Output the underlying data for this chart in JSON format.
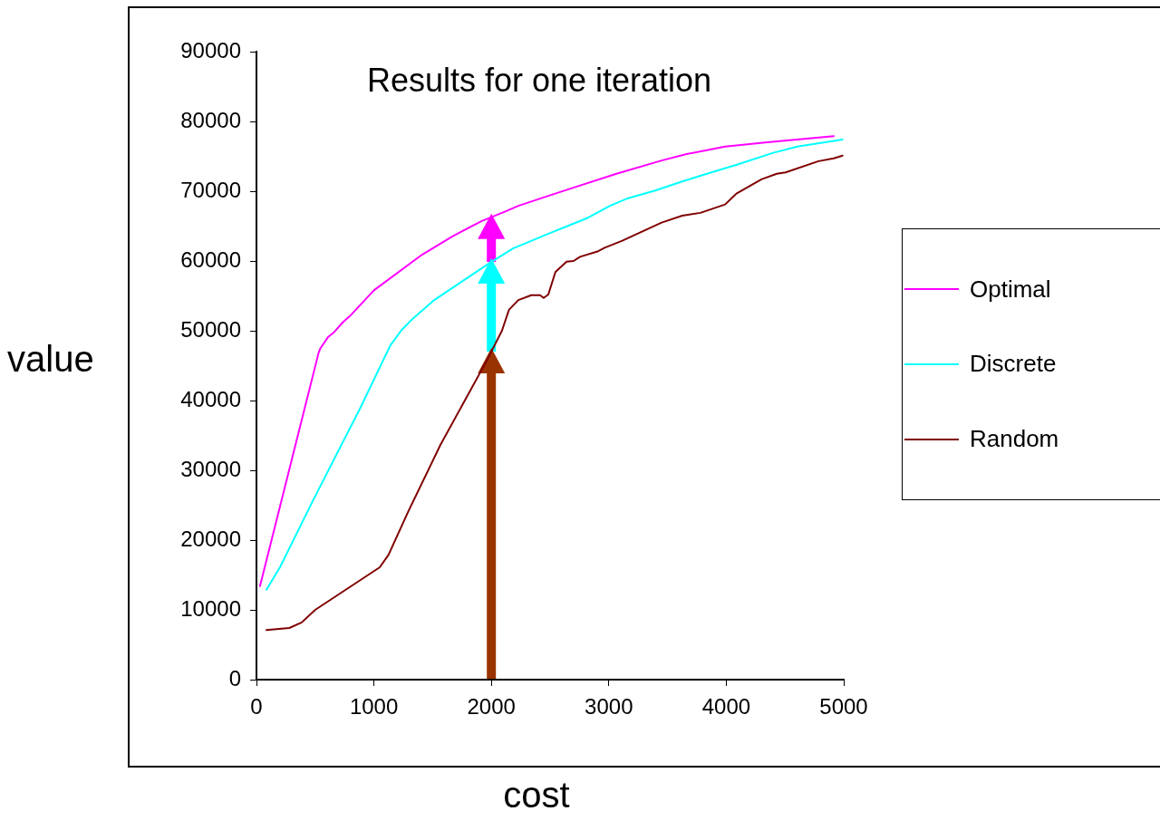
{
  "chart_data": {
    "type": "line",
    "title": "Results for one iteration",
    "xlabel": "cost",
    "ylabel": "value",
    "xlim": [
      0,
      5000
    ],
    "xticks": [
      0,
      1000,
      2000,
      3000,
      4000,
      5000
    ],
    "ylim": [
      0,
      90000
    ],
    "yticks": [
      0,
      10000,
      20000,
      30000,
      40000,
      50000,
      60000,
      70000,
      80000,
      90000
    ],
    "grid": false,
    "legend": "right",
    "marker": "none",
    "line_style": "solid",
    "series": [
      {
        "name": "Optimal",
        "color": "#ff00ff",
        "x": [
          30,
          530,
          545,
          610,
          655,
          735,
          795,
          1000,
          1410,
          1665,
          1915,
          2105,
          2230,
          2515,
          2680,
          3065,
          3450,
          3655,
          3990,
          4350,
          4915
        ],
        "values": [
          13400,
          46900,
          47500,
          49100,
          49700,
          51200,
          52100,
          55800,
          60900,
          63500,
          65700,
          67000,
          67900,
          69500,
          70400,
          72500,
          74400,
          75300,
          76400,
          77000,
          77900
        ]
      },
      {
        "name": "Discrete",
        "color": "#00ffff",
        "x": [
          85,
          200,
          485,
          880,
          1140,
          1235,
          1335,
          1505,
          1975,
          2185,
          2500,
          2810,
          3010,
          3165,
          3395,
          3625,
          3835,
          4090,
          4400,
          4605,
          4990
        ],
        "values": [
          12900,
          16100,
          25800,
          38800,
          47900,
          50100,
          51800,
          54300,
          59600,
          61800,
          64000,
          66100,
          67900,
          69000,
          70100,
          71400,
          72500,
          73800,
          75500,
          76400,
          77400
        ]
      },
      {
        "name": "Random",
        "color": "#800000",
        "x": [
          85,
          280,
          385,
          500,
          1050,
          1125,
          1160,
          1290,
          1565,
          1960,
          2090,
          2150,
          2230,
          2340,
          2415,
          2445,
          2485,
          2545,
          2640,
          2700,
          2755,
          2910,
          2965,
          3115,
          3320,
          3450,
          3625,
          3780,
          3990,
          4090,
          4300,
          4430,
          4505,
          4785,
          4915,
          4990
        ],
        "values": [
          7100,
          7400,
          8200,
          10000,
          16100,
          17900,
          19200,
          24000,
          33600,
          45700,
          50000,
          53000,
          54400,
          55100,
          55100,
          54700,
          55200,
          58400,
          59900,
          60000,
          60600,
          61400,
          61900,
          62900,
          64500,
          65500,
          66500,
          66900,
          68100,
          69700,
          71700,
          72500,
          72700,
          74300,
          74700,
          75100
        ]
      }
    ]
  }
}
